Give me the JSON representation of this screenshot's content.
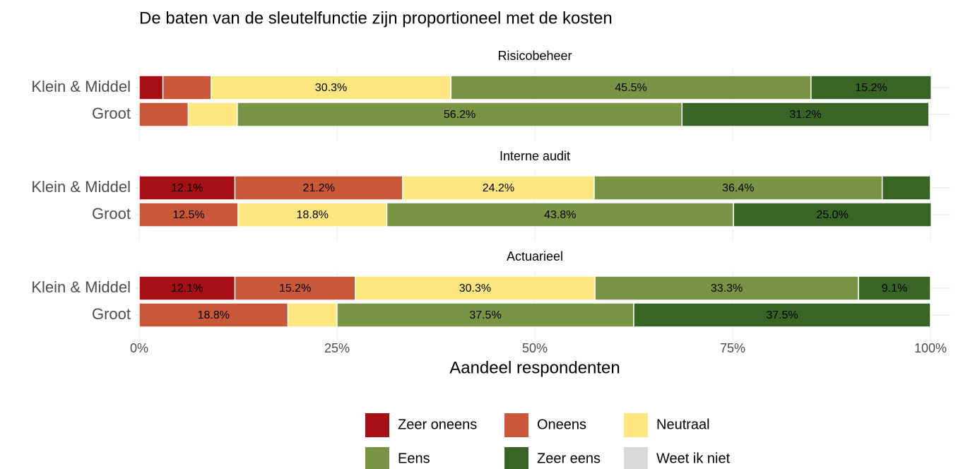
{
  "chart_data": {
    "type": "bar",
    "orientation": "horizontal",
    "stacked": true,
    "title": "De baten van de sleutelfunctie zijn proportioneel met de kosten",
    "xlabel": "Aandeel respondenten",
    "categories": [
      "Klein & Middel",
      "Groot"
    ],
    "xlim": [
      0,
      100
    ],
    "xticks": [
      {
        "value": 0,
        "label": "0%"
      },
      {
        "value": 25,
        "label": "25%"
      },
      {
        "value": 50,
        "label": "50%"
      },
      {
        "value": 75,
        "label": "75%"
      },
      {
        "value": 100,
        "label": "100%"
      }
    ],
    "grid": true,
    "legend": "bottom",
    "series": [
      {
        "name": "Zeer oneens",
        "color": "#a50f15"
      },
      {
        "name": "Oneens",
        "color": "#c9573a"
      },
      {
        "name": "Neutraal",
        "color": "#fee680"
      },
      {
        "name": "Eens",
        "color": "#7a9445"
      },
      {
        "name": "Zeer eens",
        "color": "#386426"
      },
      {
        "name": "Weet ik niet",
        "color": "#d9d9d9"
      }
    ],
    "facets": [
      {
        "title": "Risicobeheer",
        "values": [
          [
            3.0,
            0
          ],
          [
            6.1,
            6.2
          ],
          [
            30.3,
            6.2
          ],
          [
            45.5,
            56.2
          ],
          [
            15.2,
            31.2
          ],
          [
            0,
            0
          ]
        ],
        "value_labels": [
          [
            null,
            null
          ],
          [
            null,
            null
          ],
          [
            "30.3%",
            null
          ],
          [
            "45.5%",
            "56.2%"
          ],
          [
            "15.2%",
            "31.2%"
          ],
          [
            null,
            null
          ]
        ]
      },
      {
        "title": "Interne audit",
        "values": [
          [
            12.1,
            0
          ],
          [
            21.2,
            12.5
          ],
          [
            24.2,
            18.8
          ],
          [
            36.4,
            43.8
          ],
          [
            6.1,
            25.0
          ],
          [
            0,
            0
          ]
        ],
        "value_labels": [
          [
            "12.1%",
            null
          ],
          [
            "21.2%",
            "12.5%"
          ],
          [
            "24.2%",
            "18.8%"
          ],
          [
            "36.4%",
            "43.8%"
          ],
          [
            null,
            "25.0%"
          ],
          [
            null,
            null
          ]
        ]
      },
      {
        "title": "Actuarieel",
        "values": [
          [
            12.1,
            0
          ],
          [
            15.2,
            18.8
          ],
          [
            30.3,
            6.2
          ],
          [
            33.3,
            37.5
          ],
          [
            9.1,
            37.5
          ],
          [
            0,
            0
          ]
        ],
        "value_labels": [
          [
            "12.1%",
            null
          ],
          [
            "15.2%",
            "18.8%"
          ],
          [
            "30.3%",
            null
          ],
          [
            "33.3%",
            "37.5%"
          ],
          [
            "9.1%",
            "37.5%"
          ],
          [
            null,
            null
          ]
        ]
      }
    ]
  }
}
